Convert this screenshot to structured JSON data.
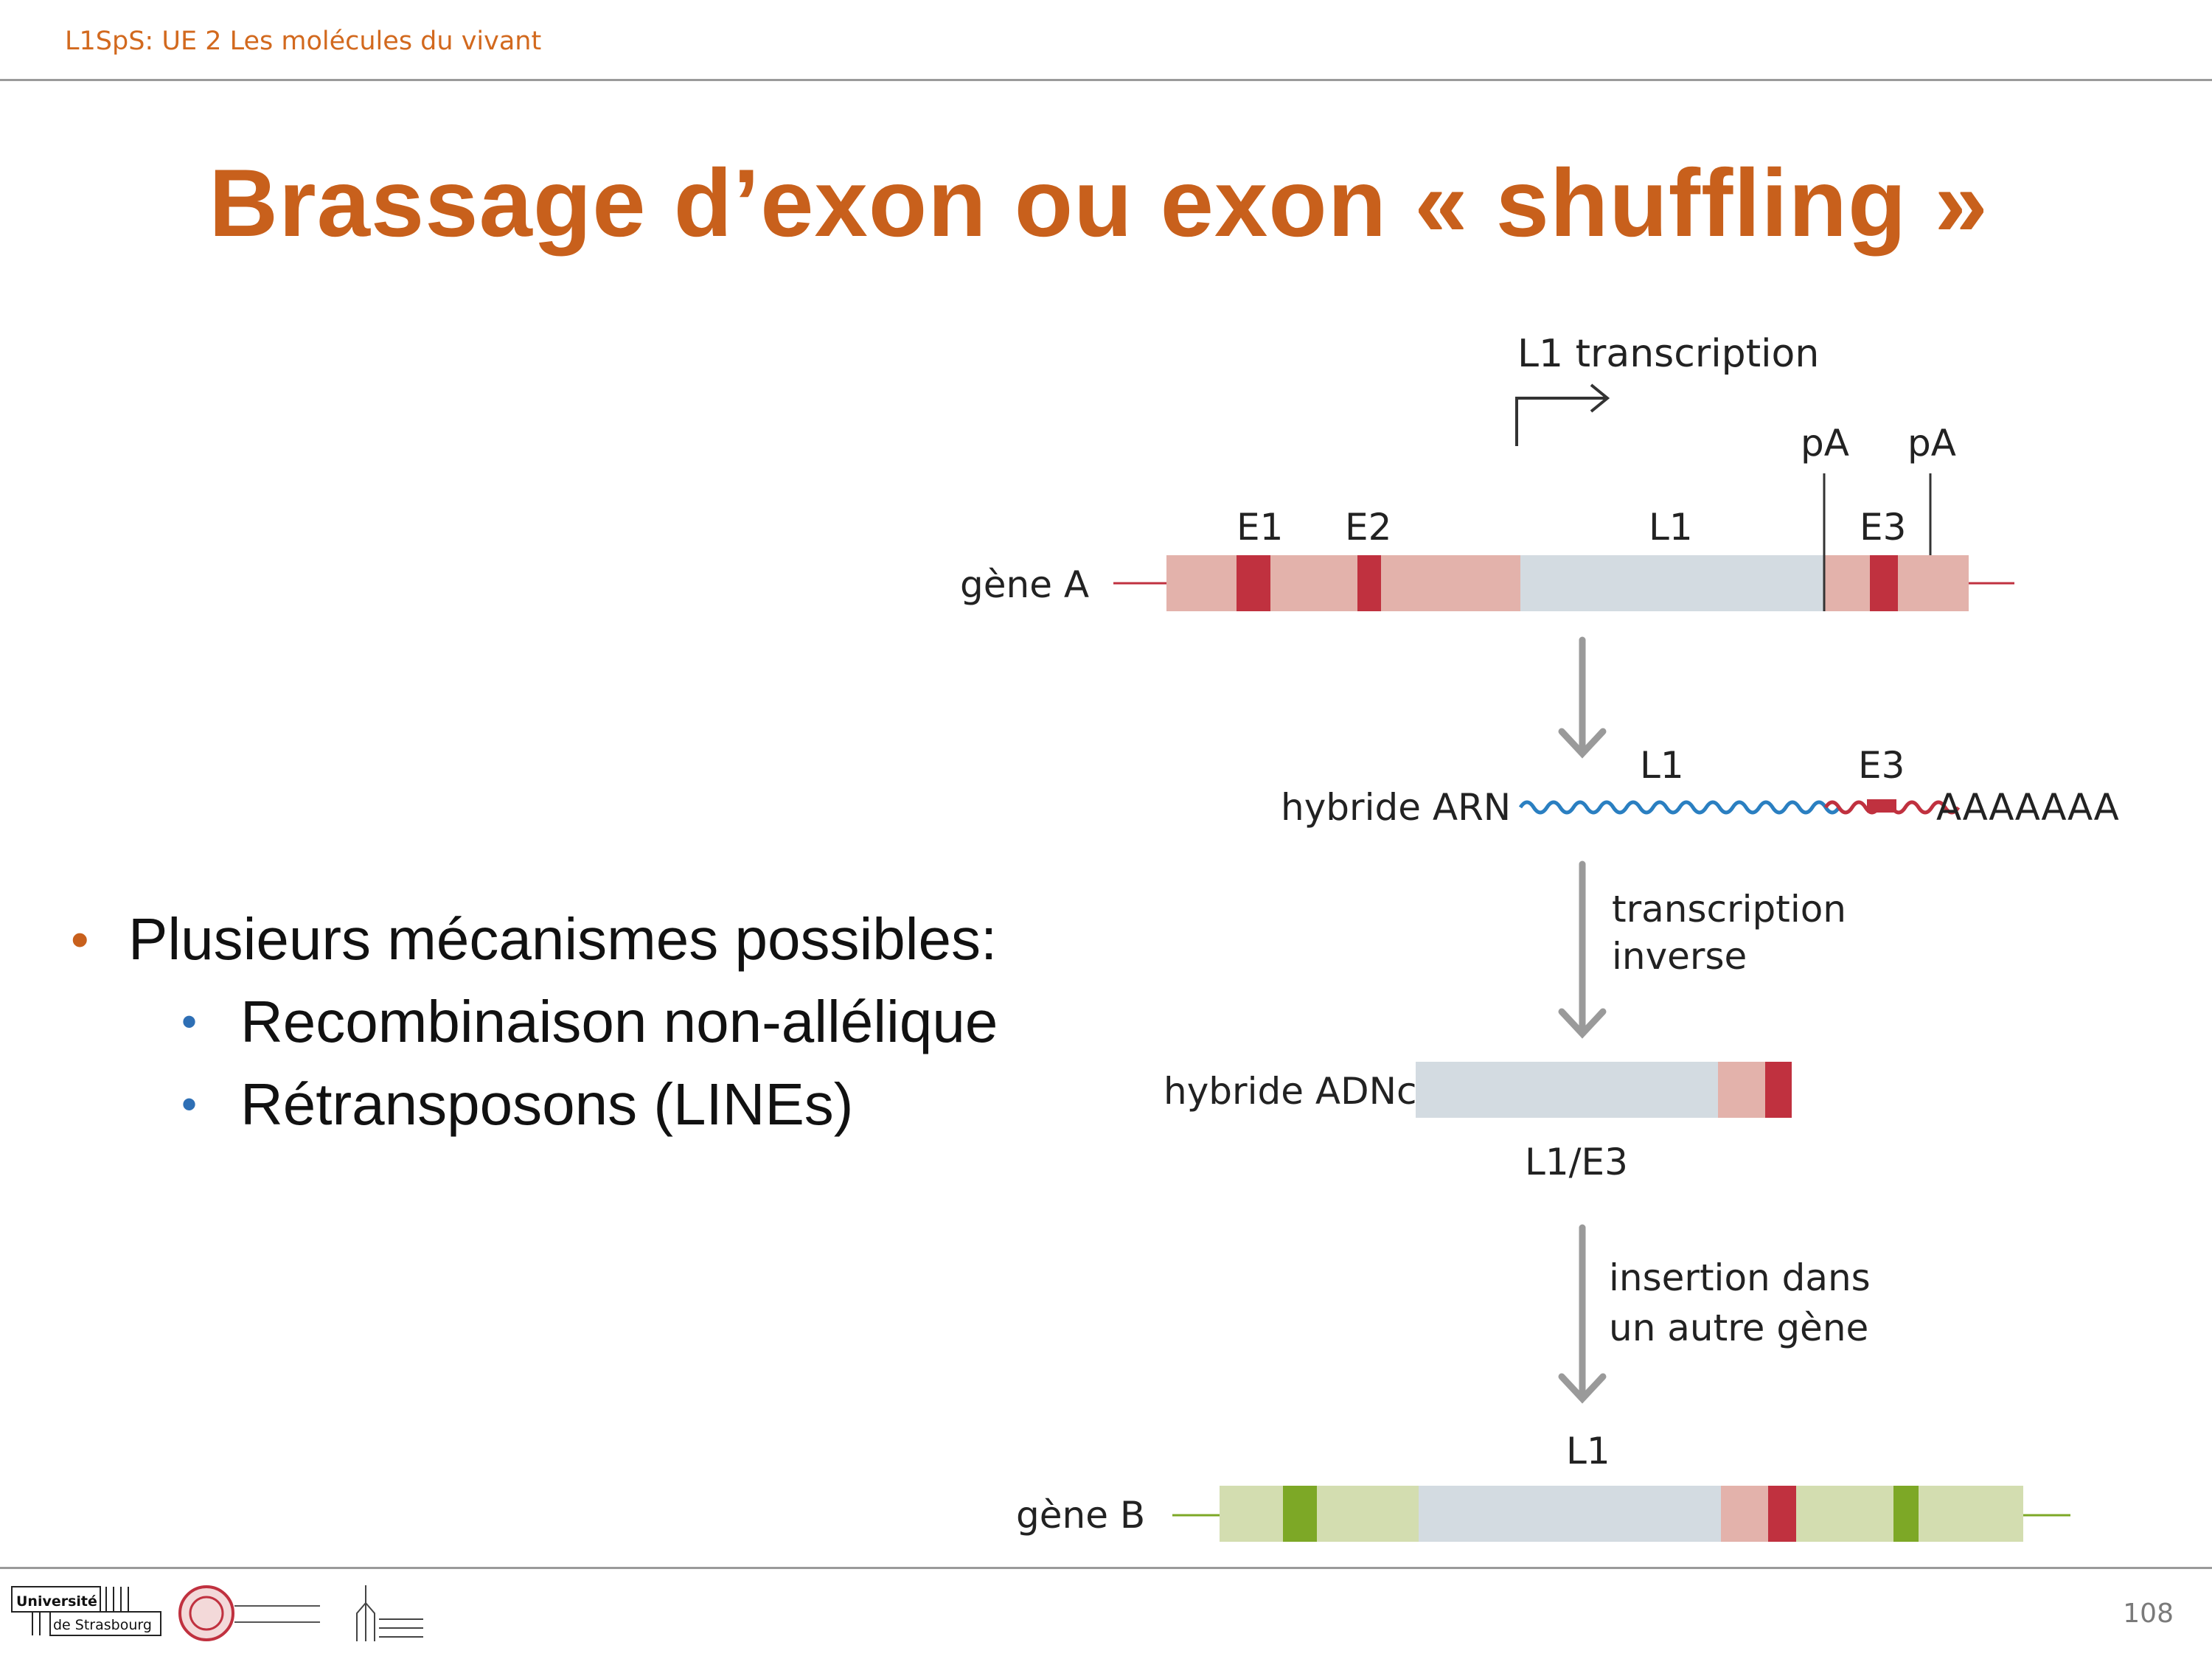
{
  "header": {
    "course": "L1SpS: UE 2 Les molécules du vivant"
  },
  "title": "Brassage d’exon ou exon « shuffling »",
  "bullets": {
    "main": "Plusieurs mécanismes possibles:",
    "sub": [
      "Recombinaison non-allélique",
      "Rétransposons (LINEs)"
    ]
  },
  "diagram": {
    "transcription_label": "L1 transcription",
    "pA_1": "pA",
    "pA_2": "pA",
    "geneA": {
      "label": "gène A",
      "E1": "E1",
      "E2": "E2",
      "L1": "L1",
      "E3": "E3"
    },
    "rna": {
      "label": "hybride ARN",
      "L1": "L1",
      "E3": "E3",
      "polyA": "AAAAAAA"
    },
    "step1": {
      "line1": "transcription",
      "line2": "inverse"
    },
    "cdna": {
      "label": "hybride ADNc",
      "caption": "L1/E3"
    },
    "step2": {
      "line1": "insertion dans",
      "line2": "un autre gène"
    },
    "geneB": {
      "label": "gène B",
      "L1": "L1"
    },
    "colors": {
      "exon_light": "#e3b2ab",
      "exon_dark": "#c0313f",
      "L1_region": "#d3dbe1",
      "geneB_light": "#d3ddb0",
      "geneB_dark": "#7da826",
      "arrow": "#9a9a9a",
      "rna_blue": "#2a7fc1"
    }
  },
  "footer": {
    "page_number": "108",
    "logo_univ_line1": "Université",
    "logo_univ_line2": "de Strasbourg"
  }
}
